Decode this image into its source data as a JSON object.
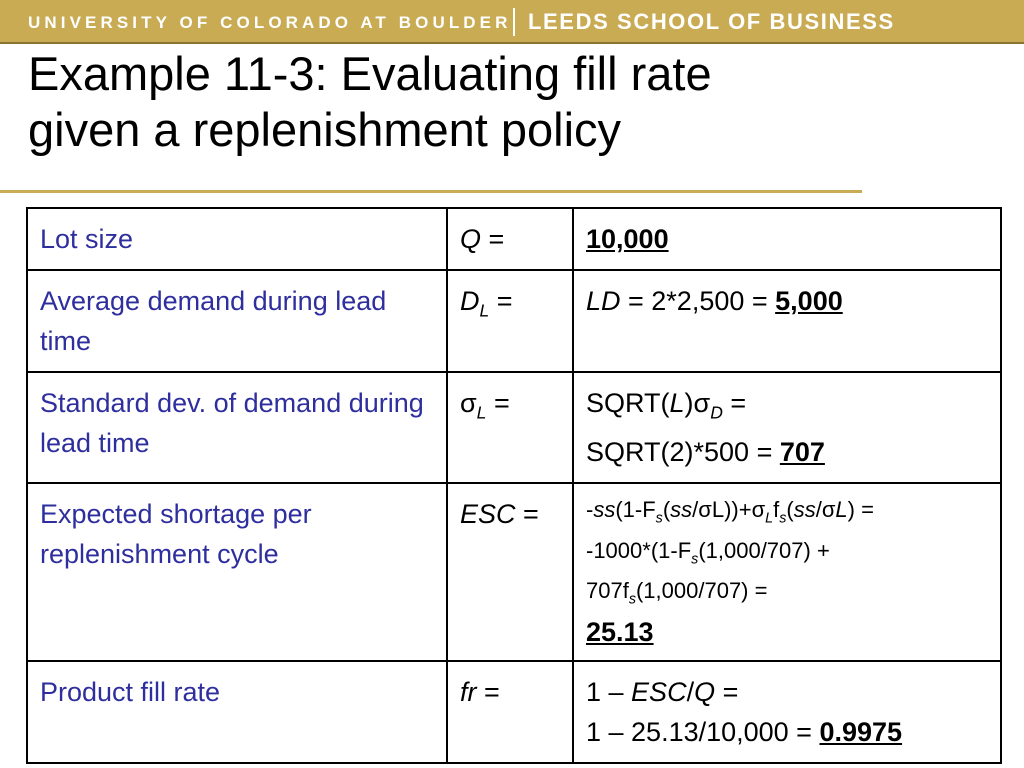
{
  "banner": {
    "left": "UNIVERSITY OF COLORADO AT BOULDER",
    "right": "LEEDS SCHOOL OF BUSINESS"
  },
  "title": {
    "line1": "Example 11-3: Evaluating fill rate",
    "line2": "given a replenishment policy"
  },
  "table": {
    "row1": {
      "label": "Lot size",
      "sym": "Q",
      "sym_eq": " =",
      "answer": "10,000"
    },
    "row2": {
      "label": "Average demand during lead time",
      "sym": "D",
      "sym_sub": "L",
      "sym_eq": " =",
      "val_sym": "LD",
      "val_text": " = 2*2,500 = ",
      "answer": "5,000"
    },
    "row3": {
      "label": "Standard dev. of demand during lead time",
      "sym": "σ",
      "sym_sub": "L",
      "sym_eq": " =",
      "l1_a": "SQRT(",
      "l1_b": "L",
      "l1_c": ")σ",
      "l1_sub": "D",
      "l1_d": " =",
      "l2_text": "SQRT(2)*500 = ",
      "answer": "707"
    },
    "row4": {
      "label": "Expected shortage per replenishment cycle",
      "sym": "ESC",
      "sym_eq": " =",
      "l1": {
        "a": "-",
        "ss1": "ss",
        "b": "(1-F",
        "s1": "s",
        "c": "(",
        "ss2": "ss",
        "d": "/σL))+σ",
        "sL": "L",
        "e": "f",
        "s2": "s",
        "f": "(",
        "ss3": "ss",
        "g": "/σ",
        "L": "L",
        "h": ") ="
      },
      "l2": {
        "a": "-1000*(1-F",
        "s": "s",
        "b": "(1,000/707) +"
      },
      "l3": {
        "a": "707f",
        "s": "s",
        "b": "(1,000/707) ="
      },
      "answer": "25.13"
    },
    "row5": {
      "label": "Product fill rate",
      "sym": "fr",
      "sym_eq": " =",
      "l1_a": "1 – ",
      "l1_esc": "ESC",
      "l1_slash": "/",
      "l1_q": "Q",
      "l1_eq": " =",
      "l2_text": "1 – 25.13/10,000 = ",
      "answer": "0.9975"
    }
  },
  "colors": {
    "banner_gold": "#c9ab54",
    "label_blue": "#2e2e9e"
  }
}
